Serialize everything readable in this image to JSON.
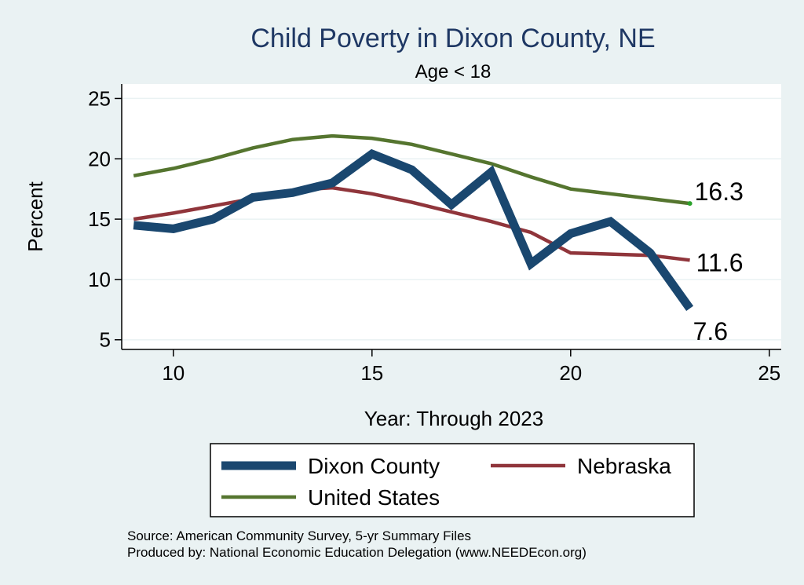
{
  "chart_data": {
    "type": "line",
    "title": "Child Poverty in Dixon County, NE",
    "subtitle": "Age < 18",
    "xlabel": "Year: Through 2023",
    "ylabel": "Percent",
    "xlim": [
      8.7,
      25.3
    ],
    "ylim": [
      4.2,
      26.2
    ],
    "xticks": [
      10,
      15,
      20,
      25
    ],
    "yticks": [
      5,
      10,
      15,
      20,
      25
    ],
    "grid": true,
    "legend_position": "bottom",
    "series": [
      {
        "name": "Dixon County",
        "color": "#1a476f",
        "x": [
          9,
          10,
          11,
          12,
          13,
          14,
          15,
          16,
          17,
          18,
          19,
          20,
          21,
          22,
          23
        ],
        "values": [
          14.5,
          14.2,
          15.0,
          16.8,
          17.2,
          18.0,
          20.4,
          19.1,
          16.2,
          18.9,
          11.3,
          13.8,
          14.8,
          12.2,
          7.6
        ],
        "end_label": "7.6"
      },
      {
        "name": "Nebraska",
        "color": "#90353b",
        "x": [
          9,
          10,
          11,
          12,
          13,
          14,
          15,
          16,
          17,
          18,
          19,
          20,
          21,
          22,
          23
        ],
        "values": [
          15.0,
          15.5,
          16.1,
          16.7,
          17.4,
          17.6,
          17.1,
          16.4,
          15.6,
          14.8,
          13.9,
          12.2,
          12.1,
          12.0,
          11.6
        ],
        "end_label": "11.6"
      },
      {
        "name": "United States",
        "color": "#55752f",
        "x": [
          9,
          10,
          11,
          12,
          13,
          14,
          15,
          16,
          17,
          18,
          19,
          20,
          21,
          22,
          23
        ],
        "values": [
          18.6,
          19.2,
          20.0,
          20.9,
          21.6,
          21.9,
          21.7,
          21.2,
          20.4,
          19.6,
          18.5,
          17.5,
          17.1,
          16.7,
          16.3
        ],
        "end_label": "16.3"
      }
    ]
  },
  "footer": {
    "source": "Source: American Community Survey, 5-yr Summary Files",
    "produced_by": "Produced by: National Economic Education Delegation (www.NEEDEcon.org)"
  }
}
